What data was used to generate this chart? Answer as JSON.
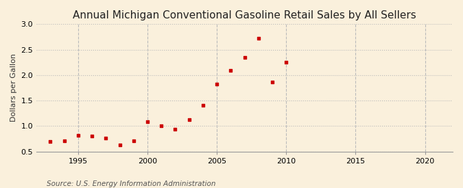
{
  "title": "Annual Michigan Conventional Gasoline Retail Sales by All Sellers",
  "ylabel": "Dollars per Gallon",
  "source": "Source: U.S. Energy Information Administration",
  "background_color": "#faf0dc",
  "years": [
    1993,
    1994,
    1995,
    1996,
    1997,
    1998,
    1999,
    2000,
    2001,
    2002,
    2003,
    2004,
    2005,
    2006,
    2007,
    2008,
    2009,
    2010
  ],
  "values": [
    0.7,
    0.71,
    0.82,
    0.8,
    0.76,
    0.63,
    0.71,
    1.09,
    1.01,
    0.94,
    1.12,
    1.41,
    1.82,
    2.09,
    2.35,
    2.72,
    1.87,
    2.26
  ],
  "marker_color": "#cc0000",
  "marker_size": 3.5,
  "xlim": [
    1992,
    2022
  ],
  "ylim": [
    0.5,
    3.0
  ],
  "xticks": [
    1995,
    2000,
    2005,
    2010,
    2015,
    2020
  ],
  "yticks": [
    0.5,
    1.0,
    1.5,
    2.0,
    2.5,
    3.0
  ],
  "grid_color": "#bbbbbb",
  "grid_style": ":",
  "title_fontsize": 11,
  "label_fontsize": 8,
  "tick_fontsize": 8,
  "source_fontsize": 7.5
}
